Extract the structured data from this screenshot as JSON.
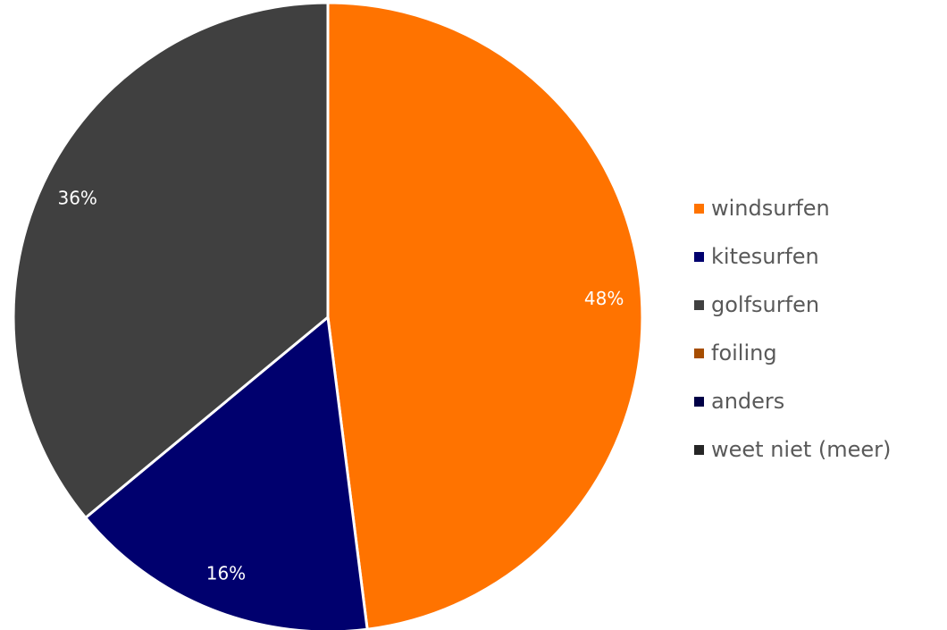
{
  "chart_data": {
    "type": "pie",
    "title": "",
    "slices": [
      {
        "label": "windsurfen",
        "value": 48,
        "value_label": "48%",
        "color": "#FF7300"
      },
      {
        "label": "kitesurfen",
        "value": 16,
        "value_label": "16%",
        "color": "#00006E"
      },
      {
        "label": "golfsurfen",
        "value": 36,
        "value_label": "36%",
        "color": "#404040"
      },
      {
        "label": "foiling",
        "value": 0,
        "value_label": "",
        "color": "#A64D00"
      },
      {
        "label": "anders",
        "value": 0,
        "value_label": "",
        "color": "#000046"
      },
      {
        "label": "weet niet (meer)",
        "value": 0,
        "value_label": "",
        "color": "#262626"
      }
    ],
    "legend_position": "right"
  }
}
